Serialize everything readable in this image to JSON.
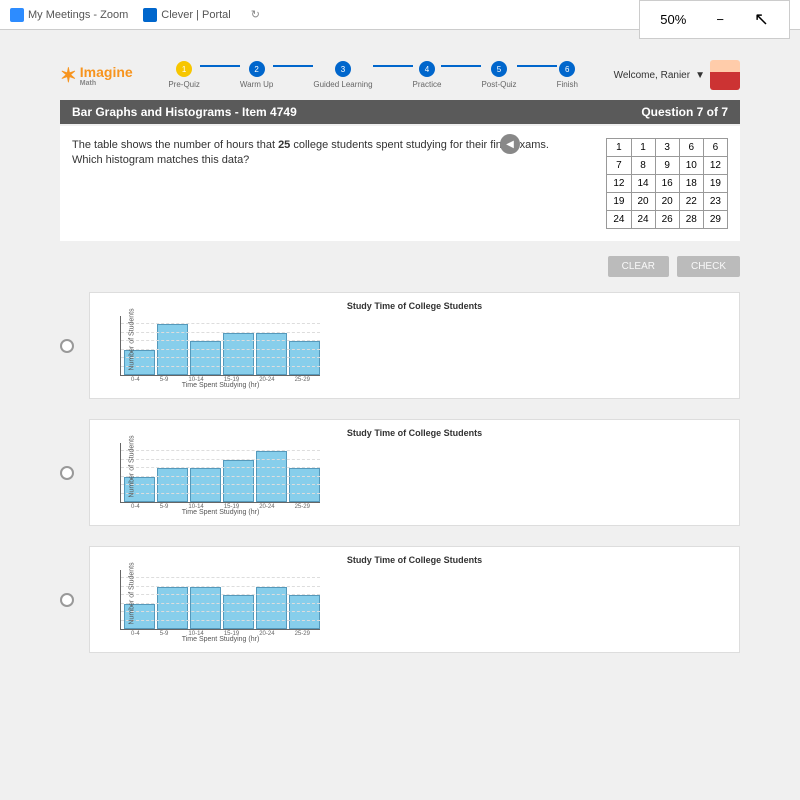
{
  "browser": {
    "tab1": "My Meetings - Zoom",
    "tab2": "Clever | Portal",
    "zoom_level": "50%"
  },
  "header": {
    "logo_text": "Imagine",
    "logo_sub": "Math",
    "steps": [
      {
        "num": "1",
        "label": "Pre-Quiz",
        "active": true
      },
      {
        "num": "2",
        "label": "Warm Up",
        "active": false
      },
      {
        "num": "3",
        "label": "Guided Learning",
        "active": false
      },
      {
        "num": "4",
        "label": "Practice",
        "active": false
      },
      {
        "num": "5",
        "label": "Post-Quiz",
        "active": false
      },
      {
        "num": "6",
        "label": "Finish",
        "active": false
      }
    ],
    "welcome": "Welcome, Ranier"
  },
  "title_bar": {
    "left": "Bar Graphs and Histograms - Item 4749",
    "right": "Question 7 of 7"
  },
  "question": {
    "text_a": "The table shows the number of hours that ",
    "text_bold": "25",
    "text_b": " college students spent studying for their final exams. Which histogram matches this data?"
  },
  "data_table": {
    "rows": [
      [
        "1",
        "1",
        "3",
        "6",
        "6"
      ],
      [
        "7",
        "8",
        "9",
        "10",
        "12"
      ],
      [
        "12",
        "14",
        "16",
        "18",
        "19"
      ],
      [
        "19",
        "20",
        "20",
        "22",
        "23"
      ],
      [
        "24",
        "24",
        "26",
        "28",
        "29"
      ]
    ]
  },
  "buttons": {
    "clear": "CLEAR",
    "check": "CHECK"
  },
  "charts": {
    "title": "Study Time of College Students",
    "y_label": "Number of Students",
    "x_label": "Time Spent Studying (hr)",
    "x_ticks": [
      "0-4",
      "5-9",
      "10-14",
      "15-19",
      "20-24",
      "25-29"
    ],
    "max_y": 7,
    "chart1_values": [
      3,
      6,
      4,
      5,
      5,
      4
    ],
    "chart2_values": [
      3,
      4,
      4,
      5,
      6,
      4
    ],
    "chart3_values": [
      3,
      5,
      5,
      4,
      5,
      4
    ],
    "bar_fill": "#87ceeb",
    "bar_border": "#5599bb",
    "chart_bg": "#ffffff"
  }
}
